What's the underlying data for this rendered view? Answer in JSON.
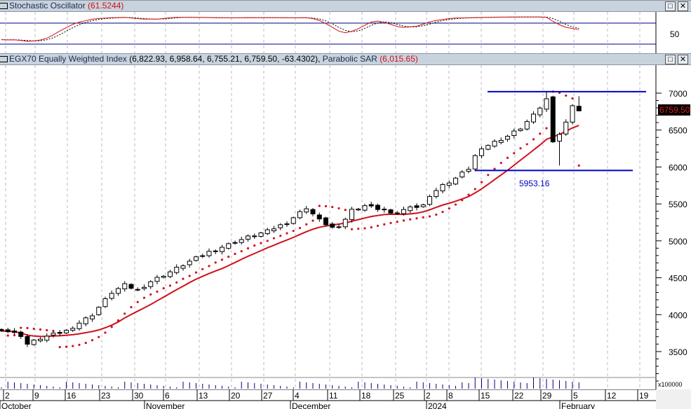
{
  "stoch": {
    "title": "Stochastic Oscillator",
    "value": "(61.5244)",
    "axis_label": "50"
  },
  "main": {
    "title": "EGX70 Equally Weighted Index",
    "ohlc": "(6,822.93, 6,958.64, 6,755.21, 6,759.50, -63.4302),",
    "sar_label": "Parabolic SAR",
    "sar_value": "(6,015.65)",
    "last_price": "6759.50",
    "support_label": "5953.16",
    "price_ticks": [
      "7000",
      "6500",
      "6000",
      "5500",
      "5000",
      "4500",
      "4000",
      "3500"
    ]
  },
  "volume": {
    "unit": "x100000"
  },
  "buttons": {
    "maximize": "□",
    "close": "✕"
  },
  "time_axis": {
    "days": [
      "2",
      "9",
      "16",
      "23",
      "30",
      "6",
      "13",
      "20",
      "27",
      "4",
      "11",
      "18",
      "25",
      "2",
      "8",
      "15",
      "22",
      "29",
      "5",
      "12",
      "19"
    ],
    "months": [
      "October",
      "November",
      "December",
      "2024",
      "February"
    ]
  },
  "colors": {
    "up": "#ffffff",
    "down": "#000000",
    "ma": "#d0101a",
    "sar": "#d0101a",
    "level": "#0000c0"
  },
  "chart_data": {
    "type": "candlestick",
    "title": "EGX70 Equally Weighted Index",
    "ylim": [
      3200,
      7300
    ],
    "anchors": [
      [
        0,
        3800
      ],
      [
        3,
        3720
      ],
      [
        4,
        3600
      ],
      [
        6,
        3680
      ],
      [
        10,
        3780
      ],
      [
        14,
        4000
      ],
      [
        17,
        4300
      ],
      [
        19,
        4400
      ],
      [
        21,
        4330
      ],
      [
        23,
        4450
      ],
      [
        26,
        4580
      ],
      [
        29,
        4720
      ],
      [
        32,
        4850
      ],
      [
        35,
        4950
      ],
      [
        38,
        5050
      ],
      [
        41,
        5130
      ],
      [
        44,
        5250
      ],
      [
        47,
        5450
      ],
      [
        49,
        5280
      ],
      [
        51,
        5180
      ],
      [
        52,
        5170
      ],
      [
        53,
        5300
      ],
      [
        54,
        5420
      ],
      [
        56,
        5480
      ],
      [
        59,
        5420
      ],
      [
        60,
        5360
      ],
      [
        62,
        5420
      ],
      [
        65,
        5480
      ],
      [
        66,
        5620
      ],
      [
        68,
        5750
      ],
      [
        70,
        5850
      ],
      [
        72,
        5980
      ],
      [
        73,
        6150
      ],
      [
        75,
        6300
      ],
      [
        78,
        6420
      ],
      [
        80,
        6530
      ],
      [
        82,
        6700
      ],
      [
        84,
        6920
      ],
      [
        85,
        6320
      ],
      [
        86,
        6450
      ],
      [
        87,
        6600
      ],
      [
        88,
        6850
      ],
      [
        89,
        6760
      ]
    ],
    "resistance": 7020,
    "support": 5953.16
  }
}
